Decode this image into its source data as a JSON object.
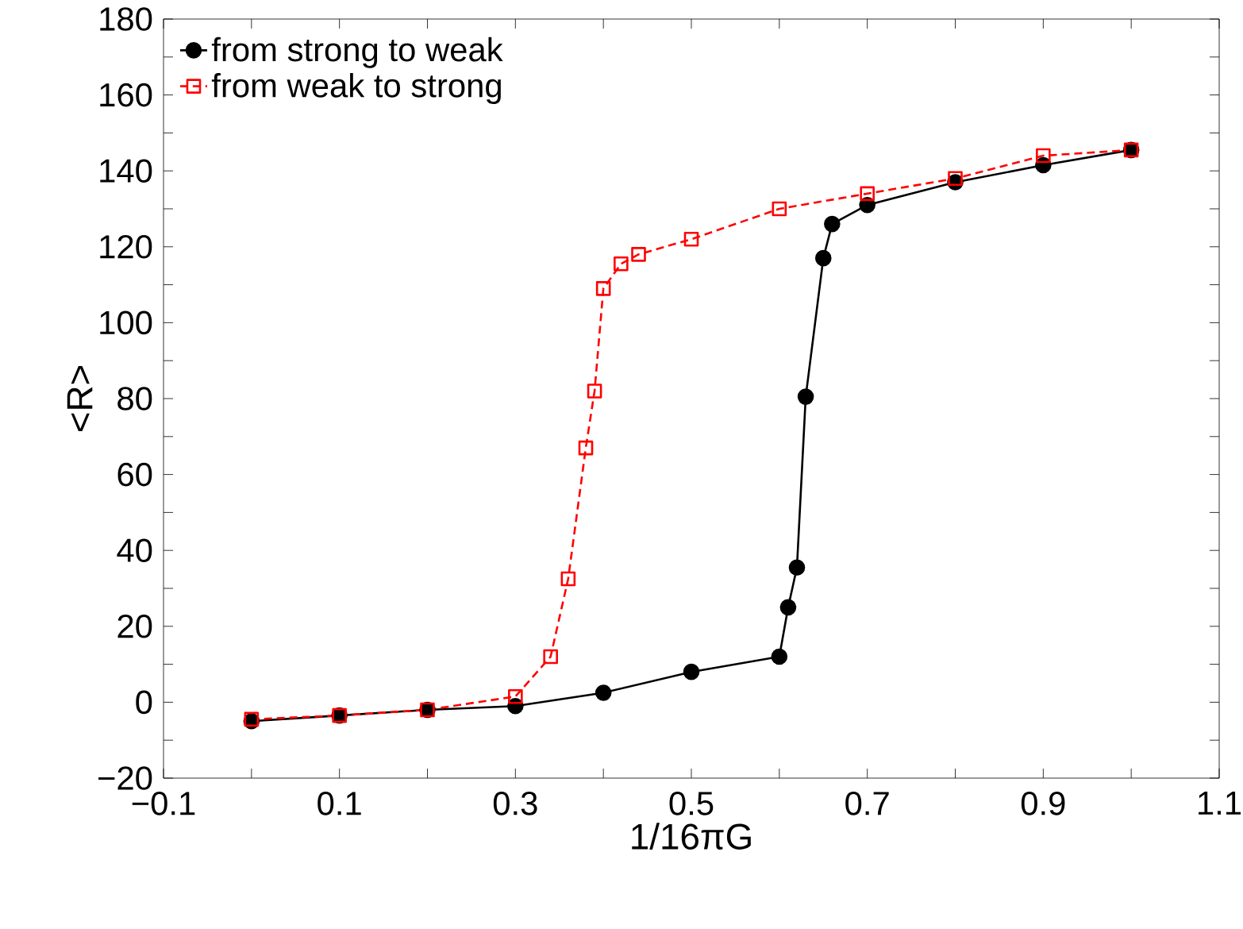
{
  "chart_data": {
    "type": "line",
    "xlabel": "1/16πG",
    "ylabel": "<R>",
    "xlim": [
      -0.1,
      1.1
    ],
    "ylim": [
      -20,
      180
    ],
    "xticks": [
      {
        "value": -0.1,
        "label": "−0.1"
      },
      {
        "value": 0,
        "label": null
      },
      0.1,
      {
        "value": 0.2,
        "label": null
      },
      0.3,
      {
        "value": 0.4,
        "label": null
      },
      0.5,
      {
        "value": 0.6,
        "label": null
      },
      0.7,
      {
        "value": 0.8,
        "label": null
      },
      0.9,
      {
        "value": 1.0,
        "label": null
      },
      1.1
    ],
    "yticks": [
      {
        "value": -20,
        "label": "−20"
      },
      {
        "value": -10,
        "label": null
      },
      0,
      {
        "value": 10,
        "label": null
      },
      20,
      {
        "value": 30,
        "label": null
      },
      40,
      {
        "value": 50,
        "label": null
      },
      60,
      {
        "value": 70,
        "label": null
      },
      80,
      {
        "value": 90,
        "label": null
      },
      100,
      {
        "value": 110,
        "label": null
      },
      120,
      {
        "value": 130,
        "label": null
      },
      140,
      {
        "value": 150,
        "label": null
      },
      160,
      {
        "value": 170,
        "label": null
      },
      180
    ],
    "legend": "top left",
    "grid": false,
    "series": [
      {
        "name": "from strong to weak",
        "color": "#000000",
        "marker": "circle",
        "line_style": "solid",
        "x": [
          0,
          0.1,
          0.2,
          0.3,
          0.4,
          0.5,
          0.6,
          0.61,
          0.62,
          0.63,
          0.65,
          0.66,
          0.7,
          0.8,
          0.9,
          1.0
        ],
        "values": [
          -5,
          -3.5,
          -2,
          -1,
          2.5,
          8,
          12,
          25,
          35.5,
          80.5,
          117,
          126,
          131,
          137,
          141.5,
          145.5
        ]
      },
      {
        "name": "from weak to strong",
        "color": "#ff0000",
        "marker": "square",
        "line_style": "dashed",
        "x": [
          0,
          0.1,
          0.2,
          0.3,
          0.34,
          0.36,
          0.38,
          0.39,
          0.4,
          0.42,
          0.44,
          0.5,
          0.6,
          0.7,
          0.8,
          0.9,
          1.0
        ],
        "values": [
          -4.5,
          -3.5,
          -2,
          1.5,
          12,
          32.5,
          67,
          82,
          109,
          115.5,
          118,
          122,
          130,
          134,
          138,
          144,
          145.5
        ]
      }
    ]
  }
}
